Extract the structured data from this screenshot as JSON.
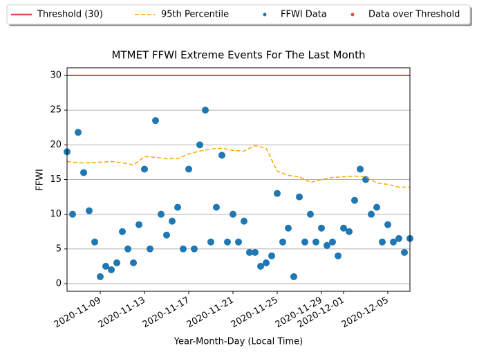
{
  "chart_data": {
    "type": "scatter",
    "title": "MTMET FFWI Extreme Events For The Last Month",
    "x_label": "Year-Month-Day (Local Time)",
    "y_label": "FFWI",
    "xlim": [
      "2020-11-06",
      "2020-12-07"
    ],
    "xticks": [
      "2020-11-09",
      "2020-11-13",
      "2020-11-17",
      "2020-11-21",
      "2020-11-25",
      "2020-11-29",
      "2020-12-01",
      "2020-12-05"
    ],
    "ylim": [
      -1.1,
      31.1
    ],
    "yticks": [
      0,
      5,
      10,
      15,
      20,
      25,
      30
    ],
    "grid": "y",
    "legend": "top",
    "threshold": {
      "name": "Threshold (30)",
      "value": 30,
      "color": "#e5484d"
    },
    "percentile": {
      "name": "95th Percentile",
      "color": "#ffa500",
      "x": [
        "2020-11-06",
        "2020-11-07",
        "2020-11-08",
        "2020-11-09",
        "2020-11-10",
        "2020-11-11",
        "2020-11-12",
        "2020-11-13",
        "2020-11-14",
        "2020-11-15",
        "2020-11-16",
        "2020-11-17",
        "2020-11-18",
        "2020-11-19",
        "2020-11-20",
        "2020-11-21",
        "2020-11-22",
        "2020-11-23",
        "2020-11-24",
        "2020-11-25",
        "2020-11-26",
        "2020-11-27",
        "2020-11-28",
        "2020-11-29",
        "2020-11-30",
        "2020-12-01",
        "2020-12-02",
        "2020-12-03",
        "2020-12-04",
        "2020-12-05",
        "2020-12-06",
        "2020-12-07"
      ],
      "values": [
        17.6,
        17.4,
        17.4,
        17.5,
        17.6,
        17.4,
        17.1,
        18.3,
        18.2,
        18.0,
        18.0,
        18.7,
        19.1,
        19.4,
        19.5,
        19.2,
        19.1,
        19.9,
        19.5,
        16.2,
        15.6,
        15.4,
        14.6,
        15.0,
        15.3,
        15.4,
        15.5,
        15.4,
        14.5,
        14.3,
        13.9,
        13.9
      ]
    },
    "series": [
      {
        "name": "FFWI Data",
        "color": "#1f77b4",
        "x": [
          "2020-11-06T00:00",
          "2020-11-06T12:00",
          "2020-11-07T00:00",
          "2020-11-07T12:00",
          "2020-11-08T00:00",
          "2020-11-08T12:00",
          "2020-11-09T00:00",
          "2020-11-09T12:00",
          "2020-11-10T00:00",
          "2020-11-10T12:00",
          "2020-11-11T00:00",
          "2020-11-11T12:00",
          "2020-11-12T00:00",
          "2020-11-12T12:00",
          "2020-11-13T00:00",
          "2020-11-13T12:00",
          "2020-11-14T00:00",
          "2020-11-14T12:00",
          "2020-11-15T00:00",
          "2020-11-15T12:00",
          "2020-11-16T00:00",
          "2020-11-16T12:00",
          "2020-11-17T00:00",
          "2020-11-17T12:00",
          "2020-11-18T00:00",
          "2020-11-18T12:00",
          "2020-11-19T00:00",
          "2020-11-19T12:00",
          "2020-11-20T00:00",
          "2020-11-20T12:00",
          "2020-11-21T00:00",
          "2020-11-21T12:00",
          "2020-11-22T00:00",
          "2020-11-22T12:00",
          "2020-11-23T00:00",
          "2020-11-23T12:00",
          "2020-11-24T00:00",
          "2020-11-24T12:00",
          "2020-11-25T00:00",
          "2020-11-25T12:00",
          "2020-11-26T00:00",
          "2020-11-26T12:00",
          "2020-11-27T00:00",
          "2020-11-27T12:00",
          "2020-11-28T00:00",
          "2020-11-28T12:00",
          "2020-11-29T00:00",
          "2020-11-29T12:00",
          "2020-11-30T00:00",
          "2020-11-30T12:00",
          "2020-12-01T00:00",
          "2020-12-01T12:00",
          "2020-12-02T00:00",
          "2020-12-02T12:00",
          "2020-12-03T00:00",
          "2020-12-03T12:00",
          "2020-12-04T00:00",
          "2020-12-04T12:00",
          "2020-12-05T00:00",
          "2020-12-05T12:00",
          "2020-12-06T00:00",
          "2020-12-06T12:00",
          "2020-12-07T00:00"
        ],
        "values": [
          19,
          10,
          21.8,
          16,
          10.5,
          6,
          1,
          2.5,
          2,
          3,
          7.5,
          5,
          3,
          8.5,
          16.5,
          5,
          23.5,
          10,
          7,
          9,
          11,
          5,
          16.5,
          5,
          20,
          25,
          6,
          11,
          18.5,
          6,
          10,
          6,
          9,
          4.5,
          4.5,
          2.5,
          3,
          4,
          13,
          6,
          8,
          1,
          12.5,
          6,
          10,
          6,
          8,
          5.5,
          6,
          4,
          8,
          7.5,
          12,
          16.5,
          15,
          10,
          11,
          6,
          8.5,
          6,
          6.5,
          4.5,
          6.5
        ]
      },
      {
        "name": "Data over Threshold",
        "color": "#d9534f",
        "x": [],
        "values": []
      }
    ]
  }
}
